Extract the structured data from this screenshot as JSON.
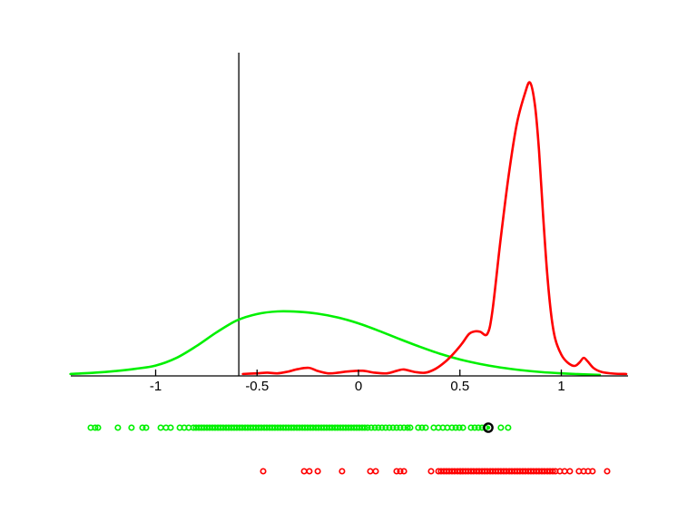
{
  "figure": {
    "background": "#ffffff",
    "axis_color": "#000000",
    "threshold_line_color": "#000000"
  },
  "chart_data": {
    "type": "line",
    "title": "",
    "xlabel": "",
    "ylabel": "",
    "grid": false,
    "legend": "none",
    "x_axis": {
      "range": [
        -1.42,
        1.33
      ],
      "ticks": [
        -1,
        -0.5,
        0,
        0.5,
        1
      ],
      "tick_labels": [
        "-1",
        "-0.5",
        "0",
        "0.5",
        "1"
      ]
    },
    "y_axis": {
      "range": [
        0,
        1
      ],
      "ticks": [],
      "note": "no y axis drawn; density heights normalized 0-1 of plot height"
    },
    "vertical_line_x": -0.59,
    "series": [
      {
        "name": "green-density",
        "color": "#00f000",
        "points": [
          [
            -1.42,
            0.006
          ],
          [
            -1.3,
            0.01
          ],
          [
            -1.2,
            0.015
          ],
          [
            -1.1,
            0.022
          ],
          [
            -1.0,
            0.032
          ],
          [
            -0.9,
            0.055
          ],
          [
            -0.8,
            0.092
          ],
          [
            -0.7,
            0.135
          ],
          [
            -0.6,
            0.172
          ],
          [
            -0.5,
            0.192
          ],
          [
            -0.4,
            0.2
          ],
          [
            -0.3,
            0.199
          ],
          [
            -0.2,
            0.193
          ],
          [
            -0.1,
            0.181
          ],
          [
            0.0,
            0.163
          ],
          [
            0.1,
            0.14
          ],
          [
            0.2,
            0.115
          ],
          [
            0.3,
            0.091
          ],
          [
            0.4,
            0.069
          ],
          [
            0.5,
            0.051
          ],
          [
            0.6,
            0.037
          ],
          [
            0.7,
            0.026
          ],
          [
            0.8,
            0.018
          ],
          [
            0.9,
            0.012
          ],
          [
            1.0,
            0.008
          ],
          [
            1.1,
            0.005
          ],
          [
            1.19,
            0.003
          ]
        ]
      },
      {
        "name": "red-density",
        "color": "#ff0000",
        "points": [
          [
            -0.57,
            0.006
          ],
          [
            -0.5,
            0.008
          ],
          [
            -0.45,
            0.01
          ],
          [
            -0.4,
            0.008
          ],
          [
            -0.35,
            0.013
          ],
          [
            -0.3,
            0.021
          ],
          [
            -0.245,
            0.025
          ],
          [
            -0.2,
            0.015
          ],
          [
            -0.15,
            0.008
          ],
          [
            -0.1,
            0.01
          ],
          [
            -0.05,
            0.014
          ],
          [
            0.02,
            0.016
          ],
          [
            0.08,
            0.01
          ],
          [
            0.14,
            0.008
          ],
          [
            0.19,
            0.016
          ],
          [
            0.224,
            0.02
          ],
          [
            0.28,
            0.012
          ],
          [
            0.33,
            0.01
          ],
          [
            0.38,
            0.022
          ],
          [
            0.43,
            0.045
          ],
          [
            0.47,
            0.07
          ],
          [
            0.51,
            0.1
          ],
          [
            0.545,
            0.13
          ],
          [
            0.573,
            0.138
          ],
          [
            0.6,
            0.137
          ],
          [
            0.635,
            0.13
          ],
          [
            0.66,
            0.2
          ],
          [
            0.7,
            0.42
          ],
          [
            0.74,
            0.62
          ],
          [
            0.78,
            0.78
          ],
          [
            0.82,
            0.875
          ],
          [
            0.846,
            0.91
          ],
          [
            0.87,
            0.84
          ],
          [
            0.89,
            0.7
          ],
          [
            0.91,
            0.5
          ],
          [
            0.93,
            0.32
          ],
          [
            0.95,
            0.19
          ],
          [
            0.97,
            0.115
          ],
          [
            1.0,
            0.066
          ],
          [
            1.03,
            0.042
          ],
          [
            1.065,
            0.031
          ],
          [
            1.09,
            0.042
          ],
          [
            1.11,
            0.056
          ],
          [
            1.13,
            0.045
          ],
          [
            1.16,
            0.024
          ],
          [
            1.2,
            0.012
          ],
          [
            1.26,
            0.007
          ],
          [
            1.32,
            0.006
          ]
        ]
      }
    ],
    "rugs": [
      {
        "name": "green-samples",
        "color": "#00f000",
        "row": "upper",
        "x": [
          -1.32,
          -1.298,
          -1.284,
          -1.186,
          -1.119,
          -1.065,
          -1.047,
          -0.975,
          -0.949,
          -0.926,
          -0.881,
          -0.859,
          -0.837,
          -0.814,
          -0.801,
          -0.787,
          -0.774,
          -0.761,
          -0.747,
          -0.734,
          -0.72,
          -0.707,
          -0.693,
          -0.68,
          -0.667,
          -0.653,
          -0.64,
          -0.626,
          -0.613,
          -0.6,
          -0.586,
          -0.573,
          -0.559,
          -0.546,
          -0.532,
          -0.519,
          -0.506,
          -0.492,
          -0.479,
          -0.465,
          -0.452,
          -0.438,
          -0.425,
          -0.412,
          -0.398,
          -0.385,
          -0.371,
          -0.358,
          -0.345,
          -0.331,
          -0.318,
          -0.304,
          -0.291,
          -0.277,
          -0.264,
          -0.251,
          -0.237,
          -0.224,
          -0.21,
          -0.197,
          -0.183,
          -0.17,
          -0.157,
          -0.143,
          -0.13,
          -0.116,
          -0.103,
          -0.089,
          -0.076,
          -0.063,
          -0.049,
          -0.036,
          -0.022,
          -0.009,
          0.004,
          0.018,
          0.031,
          0.045,
          0.063,
          0.081,
          0.098,
          0.116,
          0.134,
          0.152,
          0.17,
          0.188,
          0.206,
          0.224,
          0.242,
          0.255,
          0.295,
          0.313,
          0.331,
          0.371,
          0.394,
          0.416,
          0.438,
          0.461,
          0.479,
          0.497,
          0.515,
          0.555,
          0.573,
          0.591,
          0.609,
          0.626,
          0.702,
          0.738
        ]
      },
      {
        "name": "red-samples",
        "color": "#ff0000",
        "row": "lower",
        "x": [
          -0.47,
          -0.268,
          -0.242,
          -0.201,
          -0.081,
          0.058,
          0.085,
          0.188,
          0.206,
          0.224,
          0.358,
          0.394,
          0.407,
          0.421,
          0.434,
          0.447,
          0.461,
          0.474,
          0.488,
          0.501,
          0.515,
          0.528,
          0.541,
          0.555,
          0.568,
          0.582,
          0.595,
          0.609,
          0.622,
          0.635,
          0.649,
          0.662,
          0.676,
          0.689,
          0.702,
          0.716,
          0.729,
          0.743,
          0.756,
          0.77,
          0.783,
          0.796,
          0.81,
          0.823,
          0.837,
          0.85,
          0.863,
          0.877,
          0.89,
          0.904,
          0.917,
          0.931,
          0.944,
          0.958,
          0.971,
          0.993,
          1.016,
          1.042,
          1.087,
          1.11,
          1.132,
          1.154,
          1.226
        ]
      }
    ],
    "highlight_point": {
      "x": 0.64,
      "row": "upper",
      "ring_color": "#000000",
      "inner_color": "#00f000"
    }
  }
}
